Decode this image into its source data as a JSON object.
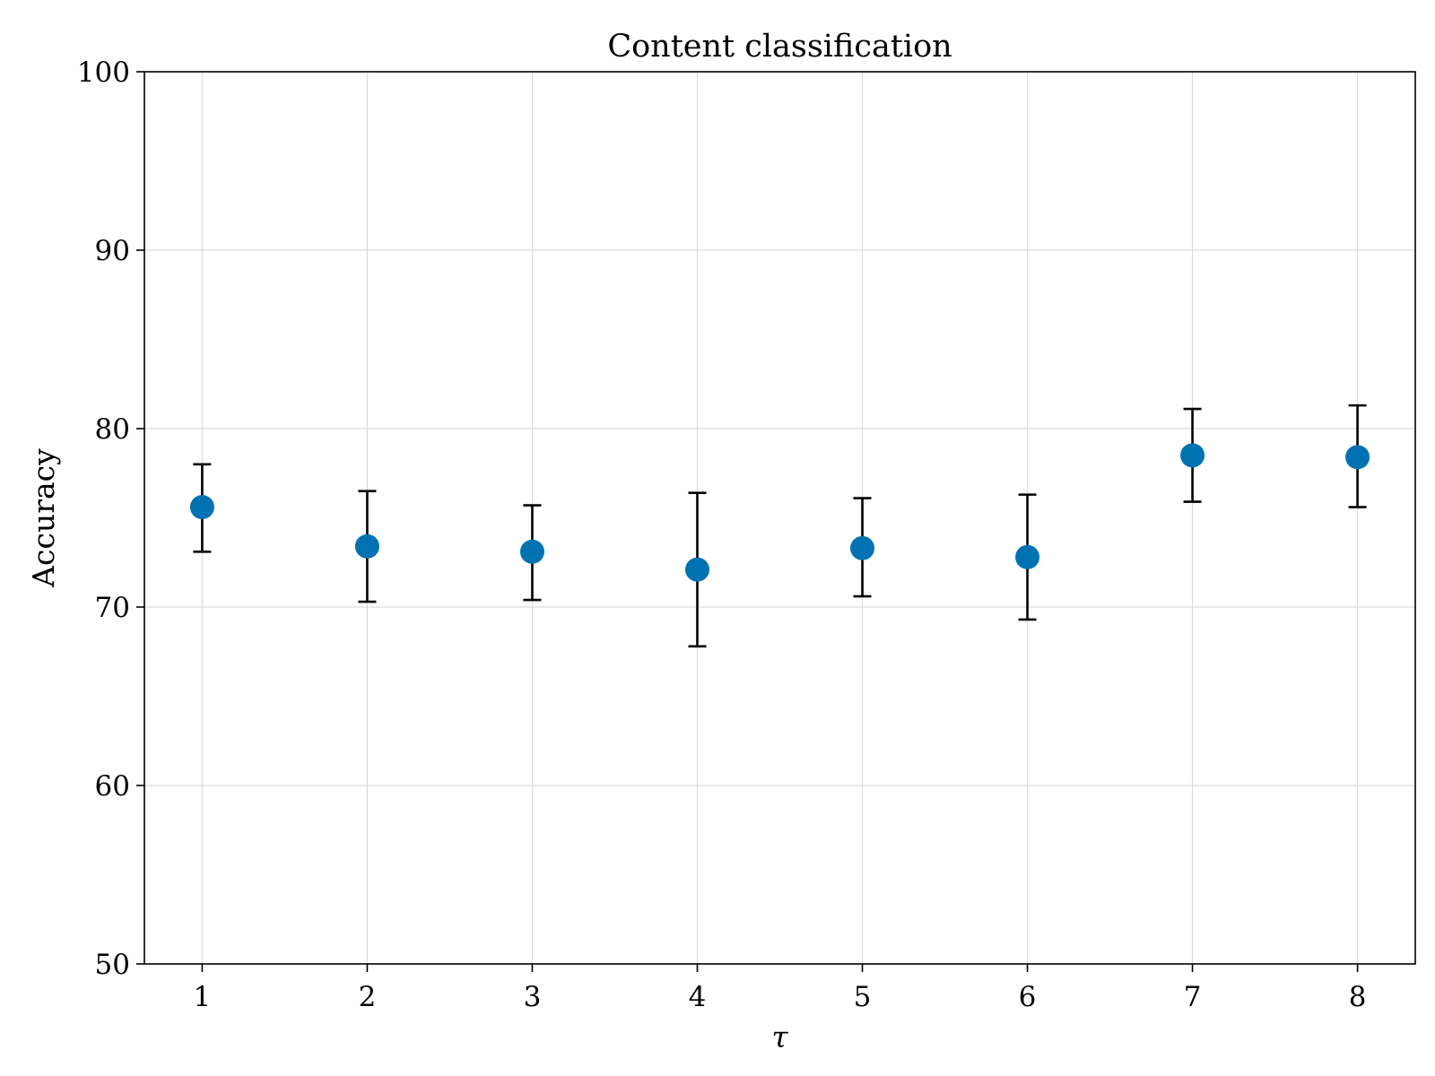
{
  "chart_data": {
    "type": "scatter",
    "title": "Content classification",
    "xlabel": "τ",
    "ylabel": "Accuracy",
    "xlim": [
      0.65,
      8.35
    ],
    "ylim": [
      50,
      100
    ],
    "xticks": [
      "1",
      "2",
      "3",
      "4",
      "5",
      "6",
      "7",
      "8"
    ],
    "yticks": [
      "50",
      "60",
      "70",
      "80",
      "90",
      "100"
    ],
    "grid": true,
    "legend": "none",
    "marker_color": "#0072b2",
    "errorbar_color": "#000000",
    "series": [
      {
        "x": [
          1,
          2,
          3,
          4,
          5,
          6,
          7,
          8
        ],
        "y": [
          75.6,
          73.4,
          73.1,
          72.1,
          73.3,
          72.8,
          78.5,
          78.4
        ],
        "error_low": [
          73.1,
          70.3,
          70.4,
          67.8,
          70.6,
          69.3,
          75.9,
          75.6
        ],
        "error_high": [
          78.0,
          76.5,
          75.7,
          76.4,
          76.1,
          76.3,
          81.1,
          81.3
        ]
      }
    ]
  }
}
